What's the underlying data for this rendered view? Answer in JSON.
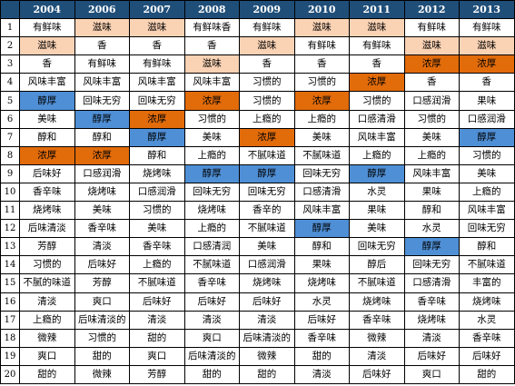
{
  "table": {
    "headers": [
      "",
      "2004",
      "2006",
      "2007",
      "2008",
      "2009",
      "2010",
      "2011",
      "2012",
      "2013"
    ],
    "colors": {
      "header": "#1f4e79",
      "light": "#fad2b4",
      "orange": "#e26b0a",
      "blue": "#4f8fd6"
    },
    "rows": [
      {
        "rank": "1",
        "cells": [
          "有鲜味",
          "滋味",
          "滋味",
          "有鲜味香",
          "有鲜味",
          "滋味",
          "滋味",
          "有鲜味",
          "有鲜味"
        ],
        "hl": [
          "",
          "light",
          "light",
          "",
          "",
          "light",
          "light",
          "",
          ""
        ]
      },
      {
        "rank": "2",
        "cells": [
          "滋味",
          "香",
          "香",
          "香",
          "滋味",
          "有鲜味",
          "有鲜味",
          "滋味",
          "滋味"
        ],
        "hl": [
          "light",
          "",
          "",
          "",
          "light",
          "",
          "",
          "light",
          "light"
        ]
      },
      {
        "rank": "3",
        "cells": [
          "香",
          "有鲜味",
          "有鲜味",
          "滋味",
          "香",
          "香",
          "香",
          "浓厚",
          "浓厚"
        ],
        "hl": [
          "",
          "",
          "",
          "light",
          "",
          "",
          "",
          "orange",
          "orange"
        ]
      },
      {
        "rank": "4",
        "cells": [
          "风味丰富",
          "风味丰富",
          "风味丰富",
          "风味丰富",
          "习惯的",
          "习惯的",
          "浓厚",
          "香",
          "香"
        ],
        "hl": [
          "",
          "",
          "",
          "",
          "",
          "",
          "orange",
          "",
          ""
        ]
      },
      {
        "rank": "5",
        "cells": [
          "醇厚",
          "回味无穷",
          "回味无穷",
          "浓厚",
          "习惯的",
          "浓厚",
          "习惯的",
          "口感润滑",
          "果味"
        ],
        "hl": [
          "blue",
          "",
          "",
          "orange",
          "",
          "orange",
          "",
          "",
          ""
        ]
      },
      {
        "rank": "6",
        "cells": [
          "美味",
          "醇厚",
          "浓厚",
          "习惯的",
          "上瘾的",
          "上瘾的",
          "口感清滑",
          "习惯的",
          "口感润滑"
        ],
        "hl": [
          "",
          "blue",
          "orange",
          "",
          "",
          "",
          "",
          "",
          ""
        ]
      },
      {
        "rank": "7",
        "cells": [
          "醇和",
          "醇和",
          "醇厚",
          "美味",
          "浓厚",
          "美味",
          "风味丰富",
          "美味",
          "醇厚"
        ],
        "hl": [
          "",
          "",
          "blue",
          "",
          "orange",
          "",
          "",
          "",
          "blue"
        ]
      },
      {
        "rank": "8",
        "cells": [
          "浓厚",
          "浓厚",
          "醇和",
          "上瘾的",
          "不腻味道",
          "不腻味道",
          "上瘾的",
          "上瘾的",
          "习惯的"
        ],
        "hl": [
          "orange",
          "orange",
          "",
          "",
          "",
          "",
          "",
          "",
          ""
        ]
      },
      {
        "rank": "9",
        "cells": [
          "后味好",
          "口感润滑",
          "烧烤味",
          "醇厚",
          "醇厚",
          "回味无穷",
          "醇厚",
          "风味丰富",
          "美味"
        ],
        "hl": [
          "",
          "",
          "",
          "blue",
          "blue",
          "",
          "blue",
          "",
          ""
        ]
      },
      {
        "rank": "10",
        "cells": [
          "香辛味",
          "烧烤味",
          "口感润滑",
          "回味无穷",
          "回味无穷",
          "口感清滑",
          "水灵",
          "果味",
          "上瘾的"
        ],
        "hl": [
          "",
          "",
          "",
          "",
          "",
          "",
          "",
          "",
          ""
        ]
      },
      {
        "rank": "11",
        "cells": [
          "烧烤味",
          "美味",
          "习惯的",
          "烧烤味",
          "香辛的",
          "风味丰富",
          "果味",
          "醇和",
          "风味丰富"
        ],
        "hl": [
          "",
          "",
          "",
          "",
          "",
          "",
          "",
          "",
          ""
        ]
      },
      {
        "rank": "12",
        "cells": [
          "后味清淡",
          "香辛味",
          "美味",
          "上瘾的",
          "不腻味道",
          "醇厚",
          "美味",
          "水灵",
          "回味无穷"
        ],
        "hl": [
          "",
          "",
          "",
          "",
          "",
          "blue",
          "",
          "",
          ""
        ]
      },
      {
        "rank": "13",
        "cells": [
          "芳醇",
          "清淡",
          "香辛味",
          "口感清润",
          "美味",
          "醇和",
          "回味无穷",
          "醇厚",
          "醇和"
        ],
        "hl": [
          "",
          "",
          "",
          "",
          "",
          "",
          "",
          "blue",
          ""
        ]
      },
      {
        "rank": "14",
        "cells": [
          "习惯的",
          "后味好",
          "上瘾的",
          "不腻味道",
          "口感润滑",
          "果味",
          "醇后",
          "回味无穷",
          "不腻味道"
        ],
        "hl": [
          "",
          "",
          "",
          "",
          "",
          "",
          "",
          "",
          ""
        ]
      },
      {
        "rank": "15",
        "cells": [
          "不腻的味道",
          "芳醇",
          "不腻味道",
          "香辛味",
          "烧烤味",
          "烧烤味",
          "不腻味道",
          "口感清滑",
          "丰富的"
        ],
        "hl": [
          "",
          "",
          "",
          "",
          "",
          "",
          "",
          "",
          ""
        ]
      },
      {
        "rank": "16",
        "cells": [
          "清淡",
          "爽口",
          "后味好",
          "后味好",
          "后味好",
          "水灵",
          "烧烤味",
          "香辛味",
          "烧烤味"
        ],
        "hl": [
          "",
          "",
          "",
          "",
          "",
          "",
          "",
          "",
          ""
        ]
      },
      {
        "rank": "17",
        "cells": [
          "上瘾的",
          "后味清淡的",
          "清淡",
          "清淡",
          "清淡",
          "后味好",
          "香辛味",
          "烧烤味",
          "水灵"
        ],
        "hl": [
          "",
          "",
          "",
          "",
          "",
          "",
          "",
          "",
          ""
        ]
      },
      {
        "rank": "18",
        "cells": [
          "微辣",
          "习惯的",
          "甜的",
          "爽口",
          "后味清淡的",
          "香辛味",
          "微辣",
          "清淡",
          "香辛味"
        ],
        "hl": [
          "",
          "",
          "",
          "",
          "",
          "",
          "",
          "",
          ""
        ]
      },
      {
        "rank": "19",
        "cells": [
          "爽口",
          "甜的",
          "爽口",
          "后味清淡的",
          "微辣",
          "甜的",
          "清淡",
          "后味好",
          "后味好"
        ],
        "hl": [
          "",
          "",
          "",
          "",
          "",
          "",
          "",
          "",
          ""
        ]
      },
      {
        "rank": "20",
        "cells": [
          "甜的",
          "微辣",
          "芳醇",
          "甜的",
          "甜的",
          "清淡",
          "后味好",
          "爽口",
          "甜的"
        ],
        "hl": [
          "",
          "",
          "",
          "",
          "",
          "",
          "",
          "",
          ""
        ]
      }
    ]
  }
}
